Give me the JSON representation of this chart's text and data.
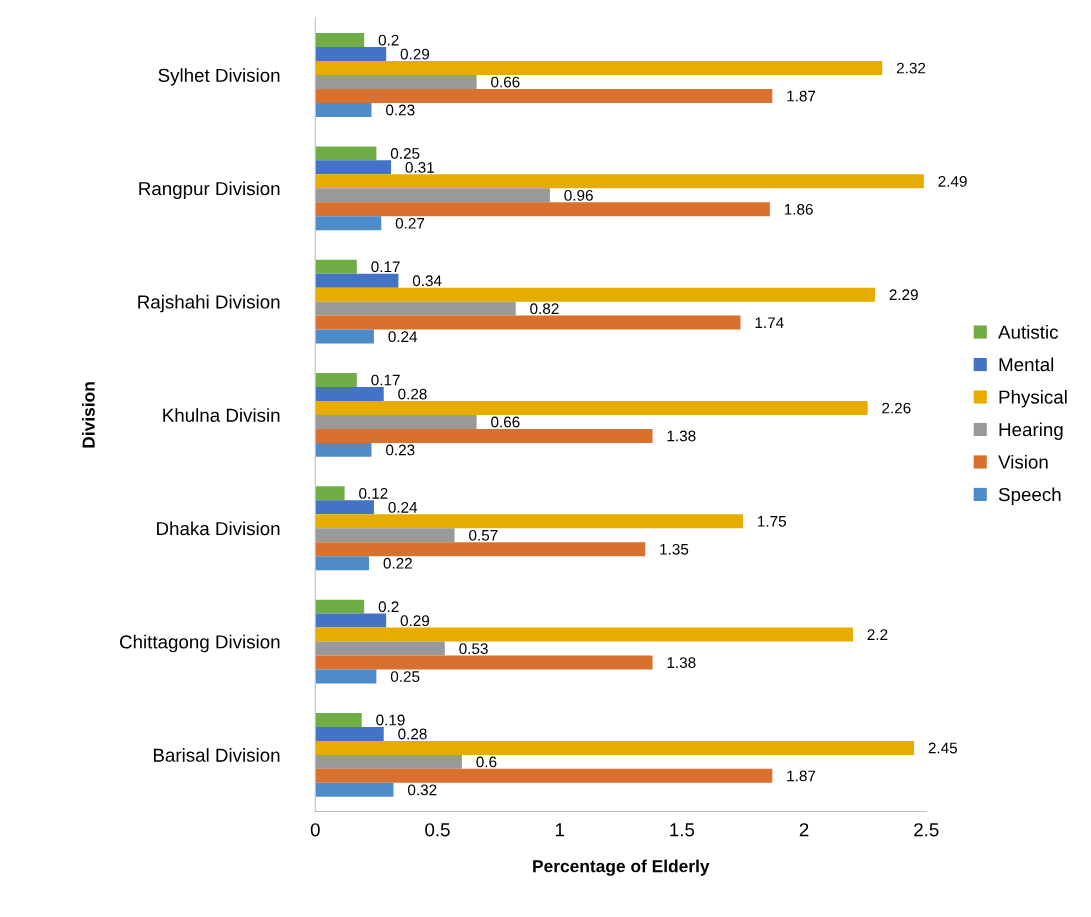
{
  "chart_data": {
    "type": "bar",
    "orientation": "horizontal",
    "xlabel": "Percentage of Elderly",
    "ylabel": "Division",
    "categories": [
      "Sylhet Division",
      "Rangpur Division",
      "Rajshahi Division",
      "Khulna Divisin",
      "Dhaka Division",
      "Chittagong Division",
      "Barisal Division"
    ],
    "series": [
      {
        "name": "Autistic",
        "color": "#70ad47",
        "values": [
          0.2,
          0.25,
          0.17,
          0.17,
          0.12,
          0.2,
          0.19
        ]
      },
      {
        "name": "Mental",
        "color": "#4472c4",
        "values": [
          0.29,
          0.31,
          0.34,
          0.28,
          0.24,
          0.29,
          0.28
        ]
      },
      {
        "name": "Physical",
        "color": "#e6ac00",
        "values": [
          2.32,
          2.49,
          2.29,
          2.26,
          1.75,
          2.2,
          2.45
        ]
      },
      {
        "name": "Hearing",
        "color": "#999999",
        "values": [
          0.66,
          0.96,
          0.82,
          0.66,
          0.57,
          0.53,
          0.6
        ]
      },
      {
        "name": "Vision",
        "color": "#d9702d",
        "values": [
          1.87,
          1.86,
          1.74,
          1.38,
          1.35,
          1.38,
          1.87
        ]
      },
      {
        "name": "Speech",
        "color": "#4e8cc9",
        "values": [
          0.23,
          0.27,
          0.24,
          0.23,
          0.22,
          0.25,
          0.32
        ]
      }
    ],
    "xlim": [
      0,
      2.5
    ],
    "xticks": [
      0,
      0.5,
      1,
      1.5,
      2,
      2.5
    ],
    "data_labels": true,
    "legend": "right",
    "grid": false
  }
}
